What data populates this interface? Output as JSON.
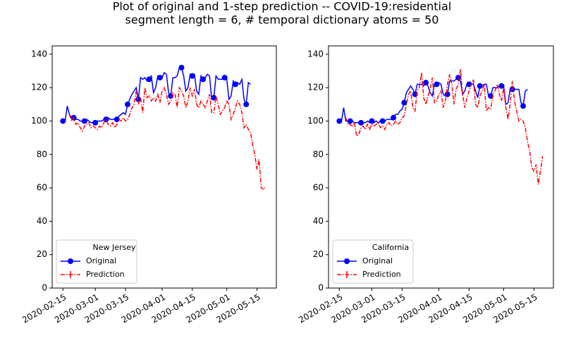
{
  "title": "Plot of original and 1-step prediction -- COVID-19:residential",
  "subtitle": "segment length = 6, # temporal dictionary atoms = 50",
  "chart_data": [
    {
      "type": "line",
      "legend_title": "New Jersey",
      "legend": "lower left",
      "x": [
        "2020-02-15",
        "2020-02-16",
        "2020-02-17",
        "2020-02-18",
        "2020-02-19",
        "2020-02-20",
        "2020-02-21",
        "2020-02-22",
        "2020-02-23",
        "2020-02-24",
        "2020-02-25",
        "2020-02-26",
        "2020-02-27",
        "2020-02-28",
        "2020-02-29",
        "2020-03-01",
        "2020-03-02",
        "2020-03-03",
        "2020-03-04",
        "2020-03-05",
        "2020-03-06",
        "2020-03-07",
        "2020-03-08",
        "2020-03-09",
        "2020-03-10",
        "2020-03-11",
        "2020-03-12",
        "2020-03-13",
        "2020-03-14",
        "2020-03-15",
        "2020-03-16",
        "2020-03-17",
        "2020-03-18",
        "2020-03-19",
        "2020-03-20",
        "2020-03-21",
        "2020-03-22",
        "2020-03-23",
        "2020-03-24",
        "2020-03-25",
        "2020-03-26",
        "2020-03-27",
        "2020-03-28",
        "2020-03-29",
        "2020-03-30",
        "2020-03-31",
        "2020-04-01",
        "2020-04-02",
        "2020-04-03",
        "2020-04-04",
        "2020-04-05",
        "2020-04-06",
        "2020-04-07",
        "2020-04-08",
        "2020-04-09",
        "2020-04-10",
        "2020-04-11",
        "2020-04-12",
        "2020-04-13",
        "2020-04-14",
        "2020-04-15",
        "2020-04-16",
        "2020-04-17",
        "2020-04-18",
        "2020-04-19",
        "2020-04-20",
        "2020-04-21",
        "2020-04-22",
        "2020-04-23",
        "2020-04-24",
        "2020-04-25",
        "2020-04-26",
        "2020-04-27",
        "2020-04-28",
        "2020-04-29",
        "2020-04-30",
        "2020-05-01",
        "2020-05-02",
        "2020-05-03",
        "2020-05-04",
        "2020-05-05",
        "2020-05-06",
        "2020-05-07",
        "2020-05-08",
        "2020-05-09",
        "2020-05-10",
        "2020-05-11",
        "2020-05-12",
        "2020-05-13",
        "2020-05-14",
        "2020-05-15",
        "2020-05-16",
        "2020-05-17",
        "2020-05-18",
        "2020-05-19"
      ],
      "series": [
        {
          "name": "Original",
          "color": "#0000ff",
          "linestyle": "solid",
          "marker": "o",
          "markevery": 5,
          "values": [
            100,
            100,
            109,
            104,
            102,
            102,
            101,
            101,
            100,
            100,
            100,
            101,
            100,
            99,
            99,
            99,
            100,
            100,
            100,
            101,
            101,
            102,
            101,
            101,
            101,
            101,
            103,
            104,
            105,
            104,
            110,
            113,
            116,
            118,
            120,
            113,
            126,
            125,
            126,
            124,
            125,
            127,
            117,
            120,
            127,
            126,
            126,
            129,
            128,
            117,
            115,
            126,
            126,
            127,
            132,
            132,
            127,
            118,
            120,
            128,
            127,
            128,
            118,
            116,
            127,
            125,
            126,
            128,
            127,
            113,
            114,
            127,
            125,
            125,
            125,
            126,
            125,
            113,
            115,
            124,
            122,
            123,
            122,
            125,
            113,
            110,
            123,
            122,
            null,
            null,
            null,
            null,
            null,
            null,
            null
          ]
        },
        {
          "name": "Prediction",
          "color": "#ff0000",
          "linestyle": "dashdot",
          "marker": "|",
          "values": [
            null,
            null,
            null,
            104,
            100,
            102,
            98,
            99,
            96,
            94,
            97,
            98,
            99,
            96,
            97,
            96,
            95,
            97,
            96,
            99,
            101,
            98,
            97,
            99,
            96,
            98,
            101,
            100,
            102,
            100,
            101,
            104,
            108,
            110,
            118,
            110,
            114,
            105,
            120,
            114,
            115,
            112,
            114,
            112,
            116,
            111,
            118,
            120,
            116,
            110,
            112,
            117,
            116,
            108,
            120,
            118,
            115,
            108,
            112,
            120,
            115,
            119,
            110,
            108,
            112,
            110,
            108,
            112,
            116,
            105,
            105,
            115,
            110,
            104,
            106,
            108,
            112,
            110,
            101,
            104,
            108,
            112,
            110,
            105,
            96,
            98,
            95,
            93,
            86,
            80,
            71,
            77,
            60,
            59,
            61
          ]
        }
      ],
      "xlim": [
        "2020-02-10",
        "2020-05-24"
      ],
      "xticks": [
        "2020-02-15",
        "2020-03-01",
        "2020-03-15",
        "2020-04-01",
        "2020-04-15",
        "2020-05-01",
        "2020-05-15"
      ],
      "ylim": [
        0,
        145
      ],
      "yticks": [
        0,
        20,
        40,
        60,
        80,
        100,
        120,
        140
      ]
    },
    {
      "type": "line",
      "legend_title": "California",
      "legend": "lower left",
      "x": [
        "2020-02-15",
        "2020-02-16",
        "2020-02-17",
        "2020-02-18",
        "2020-02-19",
        "2020-02-20",
        "2020-02-21",
        "2020-02-22",
        "2020-02-23",
        "2020-02-24",
        "2020-02-25",
        "2020-02-26",
        "2020-02-27",
        "2020-02-28",
        "2020-02-29",
        "2020-03-01",
        "2020-03-02",
        "2020-03-03",
        "2020-03-04",
        "2020-03-05",
        "2020-03-06",
        "2020-03-07",
        "2020-03-08",
        "2020-03-09",
        "2020-03-10",
        "2020-03-11",
        "2020-03-12",
        "2020-03-13",
        "2020-03-14",
        "2020-03-15",
        "2020-03-16",
        "2020-03-17",
        "2020-03-18",
        "2020-03-19",
        "2020-03-20",
        "2020-03-21",
        "2020-03-22",
        "2020-03-23",
        "2020-03-24",
        "2020-03-25",
        "2020-03-26",
        "2020-03-27",
        "2020-03-28",
        "2020-03-29",
        "2020-03-30",
        "2020-03-31",
        "2020-04-01",
        "2020-04-02",
        "2020-04-03",
        "2020-04-04",
        "2020-04-05",
        "2020-04-06",
        "2020-04-07",
        "2020-04-08",
        "2020-04-09",
        "2020-04-10",
        "2020-04-11",
        "2020-04-12",
        "2020-04-13",
        "2020-04-14",
        "2020-04-15",
        "2020-04-16",
        "2020-04-17",
        "2020-04-18",
        "2020-04-19",
        "2020-04-20",
        "2020-04-21",
        "2020-04-22",
        "2020-04-23",
        "2020-04-24",
        "2020-04-25",
        "2020-04-26",
        "2020-04-27",
        "2020-04-28",
        "2020-04-29",
        "2020-04-30",
        "2020-05-01",
        "2020-05-02",
        "2020-05-03",
        "2020-05-04",
        "2020-05-05",
        "2020-05-06",
        "2020-05-07",
        "2020-05-08",
        "2020-05-09",
        "2020-05-10",
        "2020-05-11",
        "2020-05-12",
        "2020-05-13",
        "2020-05-14",
        "2020-05-15",
        "2020-05-16",
        "2020-05-17",
        "2020-05-18",
        "2020-05-19"
      ],
      "series": [
        {
          "name": "Original",
          "color": "#0000ff",
          "linestyle": "solid",
          "marker": "o",
          "markevery": 5,
          "values": [
            100,
            100,
            108,
            100,
            100,
            100,
            100,
            99,
            99,
            99,
            99,
            99,
            99,
            100,
            99,
            100,
            99,
            100,
            99,
            100,
            100,
            100,
            101,
            101,
            101,
            102,
            104,
            104,
            106,
            107,
            111,
            117,
            119,
            121,
            119,
            116,
            122,
            122,
            122,
            121,
            123,
            121,
            117,
            115,
            122,
            122,
            123,
            122,
            116,
            115,
            116,
            124,
            124,
            124,
            125,
            126,
            124,
            116,
            118,
            122,
            122,
            122,
            122,
            118,
            114,
            121,
            121,
            122,
            122,
            115,
            115,
            120,
            120,
            120,
            121,
            121,
            121,
            110,
            111,
            119,
            119,
            119,
            119,
            119,
            111,
            109,
            118,
            119,
            null,
            null,
            null,
            null,
            null,
            null,
            null
          ]
        },
        {
          "name": "Prediction",
          "color": "#ff0000",
          "linestyle": "dashdot",
          "marker": "|",
          "values": [
            null,
            null,
            null,
            102,
            98,
            98,
            97,
            99,
            91,
            92,
            96,
            97,
            95,
            98,
            95,
            98,
            97,
            98,
            99,
            96,
            97,
            95,
            98,
            99,
            97,
            98,
            100,
            98,
            99,
            102,
            103,
            110,
            116,
            118,
            108,
            106,
            118,
            120,
            129,
            114,
            110,
            115,
            119,
            126,
            111,
            112,
            116,
            118,
            108,
            112,
            122,
            128,
            122,
            110,
            119,
            122,
            131,
            116,
            108,
            114,
            118,
            122,
            125,
            110,
            108,
            115,
            118,
            122,
            106,
            108,
            107,
            116,
            118,
            122,
            116,
            112,
            120,
            108,
            101,
            110,
            124,
            112,
            106,
            100,
            101,
            100,
            96,
            88,
            82,
            72,
            70,
            74,
            62,
            70,
            79
          ]
        }
      ],
      "xlim": [
        "2020-02-10",
        "2020-05-24"
      ],
      "xticks": [
        "2020-02-15",
        "2020-03-01",
        "2020-03-15",
        "2020-04-01",
        "2020-04-15",
        "2020-05-01",
        "2020-05-15"
      ],
      "ylim": [
        0,
        145
      ],
      "yticks": [
        0,
        20,
        40,
        60,
        80,
        100,
        120,
        140
      ]
    }
  ]
}
